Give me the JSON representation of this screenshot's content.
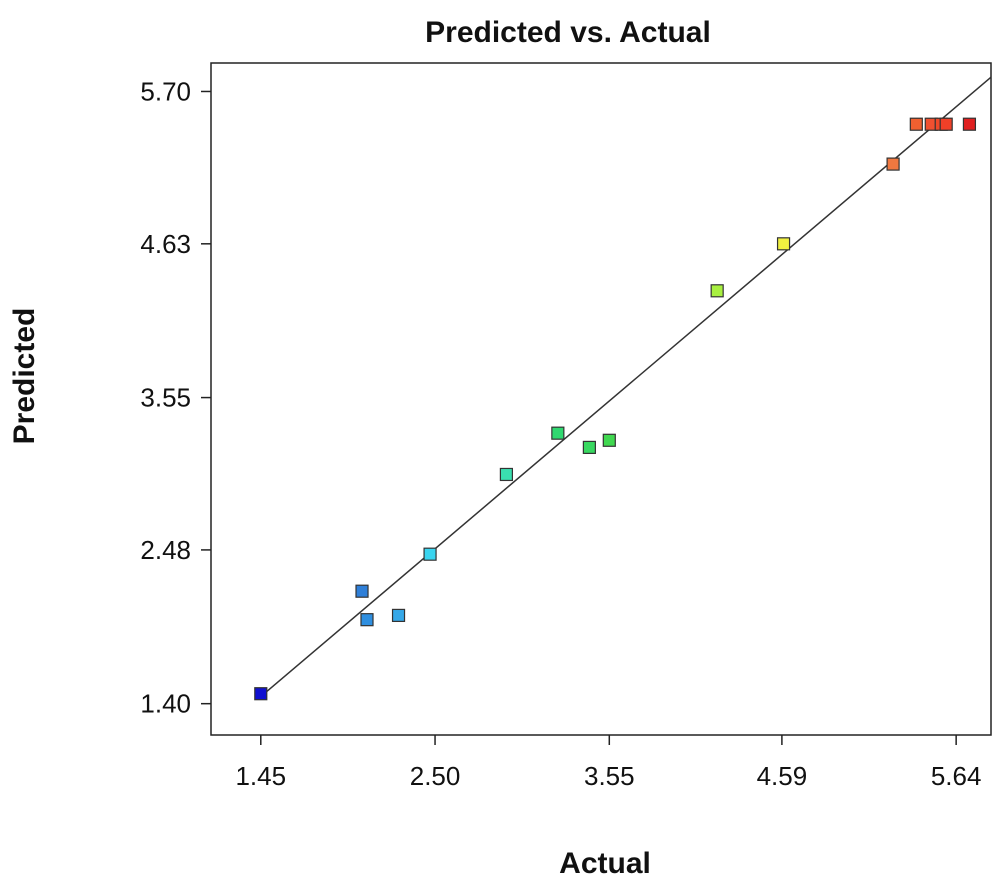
{
  "chart_data": {
    "type": "scatter",
    "title": "Predicted vs. Actual",
    "xlabel": "Actual",
    "ylabel": "Predicted",
    "x_ticks": [
      "1.45",
      "2.50",
      "3.55",
      "4.59",
      "5.64"
    ],
    "y_ticks": [
      "1.40",
      "2.48",
      "3.55",
      "4.63",
      "5.70"
    ],
    "xlim": [
      1.15,
      5.85
    ],
    "ylim": [
      1.18,
      5.9
    ],
    "grid": false,
    "reference_line": {
      "x": [
        1.45,
        5.85
      ],
      "y": [
        1.45,
        5.8
      ]
    },
    "points": [
      {
        "x": 1.45,
        "y": 1.47,
        "color": "#1010d0"
      },
      {
        "x": 2.06,
        "y": 2.19,
        "color": "#2f7fd8"
      },
      {
        "x": 2.09,
        "y": 1.99,
        "color": "#2f8fe0"
      },
      {
        "x": 2.28,
        "y": 2.02,
        "color": "#35a8e8"
      },
      {
        "x": 2.47,
        "y": 2.45,
        "color": "#3ad5f0"
      },
      {
        "x": 2.93,
        "y": 3.01,
        "color": "#3ae0b0"
      },
      {
        "x": 3.24,
        "y": 3.3,
        "color": "#30d870"
      },
      {
        "x": 3.43,
        "y": 3.2,
        "color": "#38d860"
      },
      {
        "x": 3.55,
        "y": 3.25,
        "color": "#40d850"
      },
      {
        "x": 4.2,
        "y": 4.3,
        "color": "#a8f040"
      },
      {
        "x": 4.6,
        "y": 4.63,
        "color": "#f0f040"
      },
      {
        "x": 5.26,
        "y": 5.19,
        "color": "#f07840"
      },
      {
        "x": 5.4,
        "y": 5.47,
        "color": "#f06030"
      },
      {
        "x": 5.49,
        "y": 5.47,
        "color": "#f05030"
      },
      {
        "x": 5.55,
        "y": 5.47,
        "color": "#f04828"
      },
      {
        "x": 5.58,
        "y": 5.47,
        "color": "#f04028"
      },
      {
        "x": 5.72,
        "y": 5.47,
        "color": "#e02020"
      }
    ]
  }
}
